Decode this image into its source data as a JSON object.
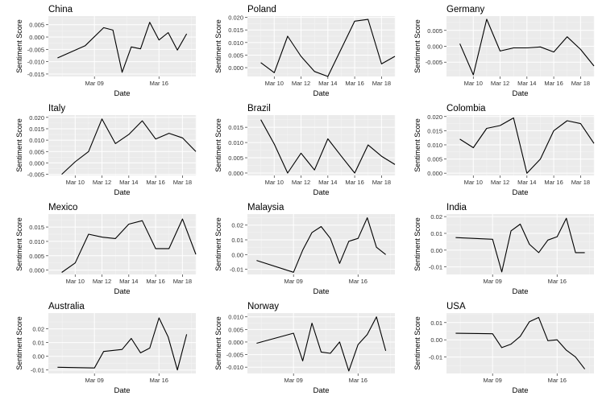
{
  "chart_data": [
    {
      "type": "line",
      "title": "China",
      "xlabel": "Date",
      "ylabel": "Sentiment Score",
      "x_axis": {
        "type": "date",
        "range": [
          "2020-03-04",
          "2020-03-20"
        ],
        "ticks": [
          {
            "date": "2020-03-09",
            "label": "Mar 09"
          },
          {
            "date": "2020-03-16",
            "label": "Mar 16"
          }
        ]
      },
      "y_axis": {
        "range": [
          -0.016,
          0.0085
        ],
        "ticks": [
          0.005,
          0.0,
          -0.005,
          -0.01,
          -0.015
        ],
        "tick_labels": [
          "0.005",
          "0.000",
          "-0.005",
          "-0.010",
          "-0.015"
        ]
      },
      "grid": true,
      "series": [
        {
          "x": [
            "2020-03-05",
            "2020-03-08",
            "2020-03-10",
            "2020-03-11",
            "2020-03-12",
            "2020-03-13",
            "2020-03-14",
            "2020-03-15",
            "2020-03-16",
            "2020-03-17",
            "2020-03-18",
            "2020-03-19"
          ],
          "y": [
            -0.0085,
            -0.0035,
            0.0038,
            0.0028,
            -0.0143,
            -0.004,
            -0.0048,
            0.006,
            -0.0012,
            0.0018,
            -0.0053,
            0.0013
          ]
        }
      ]
    },
    {
      "type": "line",
      "title": "Poland",
      "xlabel": "Date",
      "ylabel": "Sentiment Score",
      "x_axis": {
        "type": "date",
        "range": [
          "2020-03-08",
          "2020-03-19"
        ],
        "ticks": [
          {
            "date": "2020-03-10",
            "label": "Mar 10"
          },
          {
            "date": "2020-03-12",
            "label": "Mar 12"
          },
          {
            "date": "2020-03-14",
            "label": "Mar 14"
          },
          {
            "date": "2020-03-16",
            "label": "Mar 16"
          },
          {
            "date": "2020-03-18",
            "label": "Mar 18"
          }
        ]
      },
      "y_axis": {
        "range": [
          -0.0035,
          0.0205
        ],
        "ticks": [
          0.02,
          0.015,
          0.01,
          0.005,
          0.0
        ],
        "tick_labels": [
          "0.020",
          "0.015",
          "0.010",
          "0.005",
          "0.000"
        ]
      },
      "grid": true,
      "series": [
        {
          "x": [
            "2020-03-09",
            "2020-03-10",
            "2020-03-11",
            "2020-03-12",
            "2020-03-13",
            "2020-03-14",
            "2020-03-16",
            "2020-03-17",
            "2020-03-18",
            "2020-03-19"
          ],
          "y": [
            0.002,
            -0.002,
            0.0125,
            0.0045,
            -0.0015,
            -0.0035,
            0.0185,
            0.0192,
            0.0015,
            0.0045
          ]
        }
      ]
    },
    {
      "type": "line",
      "title": "Germany",
      "xlabel": "Date",
      "ylabel": "Sentiment Score",
      "x_axis": {
        "type": "date",
        "range": [
          "2020-03-08",
          "2020-03-19"
        ],
        "ticks": [
          {
            "date": "2020-03-10",
            "label": "Mar 10"
          },
          {
            "date": "2020-03-12",
            "label": "Mar 12"
          },
          {
            "date": "2020-03-14",
            "label": "Mar 14"
          },
          {
            "date": "2020-03-16",
            "label": "Mar 16"
          },
          {
            "date": "2020-03-18",
            "label": "Mar 18"
          }
        ]
      },
      "y_axis": {
        "range": [
          -0.0095,
          0.0095
        ],
        "ticks": [
          0.005,
          0.0,
          -0.005
        ],
        "tick_labels": [
          "0.005",
          "0.000",
          "-0.005"
        ]
      },
      "grid": true,
      "series": [
        {
          "x": [
            "2020-03-09",
            "2020-03-10",
            "2020-03-11",
            "2020-03-12",
            "2020-03-13",
            "2020-03-14",
            "2020-03-15",
            "2020-03-16",
            "2020-03-17",
            "2020-03-18",
            "2020-03-19"
          ],
          "y": [
            0.0008,
            -0.009,
            0.0085,
            -0.0015,
            -0.0005,
            -0.0005,
            -0.0002,
            -0.0018,
            0.003,
            -0.001,
            -0.0062
          ]
        }
      ]
    },
    {
      "type": "line",
      "title": "Italy",
      "xlabel": "Date",
      "ylabel": "Sentiment Score",
      "x_axis": {
        "type": "date",
        "range": [
          "2020-03-08",
          "2020-03-19"
        ],
        "ticks": [
          {
            "date": "2020-03-10",
            "label": "Mar 10"
          },
          {
            "date": "2020-03-12",
            "label": "Mar 12"
          },
          {
            "date": "2020-03-14",
            "label": "Mar 14"
          },
          {
            "date": "2020-03-16",
            "label": "Mar 16"
          },
          {
            "date": "2020-03-18",
            "label": "Mar 18"
          }
        ]
      },
      "y_axis": {
        "range": [
          -0.0055,
          0.021
        ],
        "ticks": [
          0.02,
          0.015,
          0.01,
          0.005,
          0.0,
          -0.005
        ],
        "tick_labels": [
          "0.020",
          "0.015",
          "0.010",
          "0.005",
          "0.000",
          "-0.005"
        ]
      },
      "grid": true,
      "series": [
        {
          "x": [
            "2020-03-09",
            "2020-03-10",
            "2020-03-11",
            "2020-03-12",
            "2020-03-13",
            "2020-03-14",
            "2020-03-15",
            "2020-03-16",
            "2020-03-17",
            "2020-03-18",
            "2020-03-19"
          ],
          "y": [
            -0.005,
            0.0005,
            0.005,
            0.0193,
            0.0085,
            0.0125,
            0.0185,
            0.0105,
            0.013,
            0.011,
            0.005
          ]
        }
      ]
    },
    {
      "type": "line",
      "title": "Brazil",
      "xlabel": "Date",
      "ylabel": "Sentiment Score",
      "x_axis": {
        "type": "date",
        "range": [
          "2020-03-08",
          "2020-03-19"
        ],
        "ticks": [
          {
            "date": "2020-03-10",
            "label": "Mar 10"
          },
          {
            "date": "2020-03-12",
            "label": "Mar 12"
          },
          {
            "date": "2020-03-14",
            "label": "Mar 14"
          },
          {
            "date": "2020-03-16",
            "label": "Mar 16"
          },
          {
            "date": "2020-03-18",
            "label": "Mar 18"
          }
        ]
      },
      "y_axis": {
        "range": [
          -0.0008,
          0.019
        ],
        "ticks": [
          0.015,
          0.01,
          0.005,
          0.0
        ],
        "tick_labels": [
          "0.015",
          "0.010",
          "0.005",
          "0.000"
        ]
      },
      "grid": true,
      "series": [
        {
          "x": [
            "2020-03-09",
            "2020-03-10",
            "2020-03-11",
            "2020-03-12",
            "2020-03-13",
            "2020-03-14",
            "2020-03-15",
            "2020-03-16",
            "2020-03-17",
            "2020-03-18",
            "2020-03-19"
          ],
          "y": [
            0.0175,
            0.0095,
            0.0,
            0.0065,
            0.001,
            0.0112,
            0.0055,
            0.0,
            0.0092,
            0.0055,
            0.0028
          ]
        }
      ]
    },
    {
      "type": "line",
      "title": "Colombia",
      "xlabel": "Date",
      "ylabel": "Sentiment Score",
      "x_axis": {
        "type": "date",
        "range": [
          "2020-03-08",
          "2020-03-19"
        ],
        "ticks": [
          {
            "date": "2020-03-10",
            "label": "Mar 10"
          },
          {
            "date": "2020-03-12",
            "label": "Mar 12"
          },
          {
            "date": "2020-03-14",
            "label": "Mar 14"
          },
          {
            "date": "2020-03-16",
            "label": "Mar 16"
          },
          {
            "date": "2020-03-18",
            "label": "Mar 18"
          }
        ]
      },
      "y_axis": {
        "range": [
          -0.0008,
          0.0205
        ],
        "ticks": [
          0.02,
          0.015,
          0.01,
          0.005,
          0.0
        ],
        "tick_labels": [
          "0.020",
          "0.015",
          "0.010",
          "0.005",
          "0.000"
        ]
      },
      "grid": true,
      "series": [
        {
          "x": [
            "2020-03-09",
            "2020-03-10",
            "2020-03-11",
            "2020-03-12",
            "2020-03-13",
            "2020-03-14",
            "2020-03-15",
            "2020-03-16",
            "2020-03-17",
            "2020-03-18",
            "2020-03-19"
          ],
          "y": [
            0.012,
            0.009,
            0.0158,
            0.0168,
            0.0195,
            0.0,
            0.005,
            0.015,
            0.0185,
            0.0175,
            0.0105
          ]
        }
      ]
    },
    {
      "type": "line",
      "title": "Mexico",
      "xlabel": "Date",
      "ylabel": "Sentiment Score",
      "x_axis": {
        "type": "date",
        "range": [
          "2020-03-08",
          "2020-03-19"
        ],
        "ticks": [
          {
            "date": "2020-03-10",
            "label": "Mar 10"
          },
          {
            "date": "2020-03-12",
            "label": "Mar 12"
          },
          {
            "date": "2020-03-14",
            "label": "Mar 14"
          },
          {
            "date": "2020-03-16",
            "label": "Mar 16"
          },
          {
            "date": "2020-03-18",
            "label": "Mar 18"
          }
        ]
      },
      "y_axis": {
        "range": [
          -0.0015,
          0.0195
        ],
        "ticks": [
          0.015,
          0.01,
          0.005,
          0.0
        ],
        "tick_labels": [
          "0.015",
          "0.010",
          "0.005",
          "0.000"
        ]
      },
      "grid": true,
      "series": [
        {
          "x": [
            "2020-03-09",
            "2020-03-10",
            "2020-03-11",
            "2020-03-12",
            "2020-03-13",
            "2020-03-14",
            "2020-03-15",
            "2020-03-16",
            "2020-03-17",
            "2020-03-18",
            "2020-03-19"
          ],
          "y": [
            -0.0008,
            0.0025,
            0.0125,
            0.0115,
            0.011,
            0.016,
            0.0172,
            0.0075,
            0.0075,
            0.0178,
            0.0055
          ]
        }
      ]
    },
    {
      "type": "line",
      "title": "Malaysia",
      "xlabel": "Date",
      "ylabel": "Sentiment Score",
      "x_axis": {
        "type": "date",
        "range": [
          "2020-03-04",
          "2020-03-20"
        ],
        "ticks": [
          {
            "date": "2020-03-09",
            "label": "Mar 09"
          },
          {
            "date": "2020-03-16",
            "label": "Mar 16"
          }
        ]
      },
      "y_axis": {
        "range": [
          -0.0135,
          0.0275
        ],
        "ticks": [
          0.02,
          0.01,
          0.0,
          -0.01
        ],
        "tick_labels": [
          "0.02",
          "0.01",
          "0.00",
          "-0.01"
        ]
      },
      "grid": true,
      "series": [
        {
          "x": [
            "2020-03-05",
            "2020-03-09",
            "2020-03-10",
            "2020-03-11",
            "2020-03-12",
            "2020-03-13",
            "2020-03-14",
            "2020-03-15",
            "2020-03-16",
            "2020-03-17",
            "2020-03-18",
            "2020-03-19"
          ],
          "y": [
            -0.004,
            -0.012,
            0.003,
            0.015,
            0.019,
            0.011,
            -0.006,
            0.009,
            0.011,
            0.025,
            0.005,
            0.0
          ]
        }
      ]
    },
    {
      "type": "line",
      "title": "India",
      "xlabel": "Date",
      "ylabel": "Sentiment Score",
      "x_axis": {
        "type": "date",
        "range": [
          "2020-03-04",
          "2020-03-20"
        ],
        "ticks": [
          {
            "date": "2020-03-09",
            "label": "Mar 09"
          },
          {
            "date": "2020-03-16",
            "label": "Mar 16"
          }
        ]
      },
      "y_axis": {
        "range": [
          -0.0145,
          0.0215
        ],
        "ticks": [
          0.02,
          0.01,
          0.0,
          -0.01
        ],
        "tick_labels": [
          "0.02",
          "0.01",
          "0.00",
          "-0.01"
        ]
      },
      "grid": true,
      "series": [
        {
          "x": [
            "2020-03-05",
            "2020-03-09",
            "2020-03-10",
            "2020-03-11",
            "2020-03-12",
            "2020-03-13",
            "2020-03-14",
            "2020-03-15",
            "2020-03-16",
            "2020-03-17",
            "2020-03-18",
            "2020-03-19"
          ],
          "y": [
            0.0075,
            0.0065,
            -0.013,
            0.0115,
            0.0155,
            0.0035,
            -0.0015,
            0.006,
            0.008,
            0.019,
            -0.0015,
            -0.0015
          ]
        }
      ]
    },
    {
      "type": "line",
      "title": "Australia",
      "xlabel": "Date",
      "ylabel": "Sentiment Score",
      "x_axis": {
        "type": "date",
        "range": [
          "2020-03-04",
          "2020-03-20"
        ],
        "ticks": [
          {
            "date": "2020-03-09",
            "label": "Mar 09"
          },
          {
            "date": "2020-03-16",
            "label": "Mar 16"
          }
        ]
      },
      "y_axis": {
        "range": [
          -0.0125,
          0.0315
        ],
        "ticks": [
          0.02,
          0.01,
          0.0,
          -0.01
        ],
        "tick_labels": [
          "0.02",
          "0.01",
          "0.00",
          "-0.01"
        ]
      },
      "grid": true,
      "series": [
        {
          "x": [
            "2020-03-05",
            "2020-03-09",
            "2020-03-10",
            "2020-03-12",
            "2020-03-13",
            "2020-03-14",
            "2020-03-15",
            "2020-03-16",
            "2020-03-17",
            "2020-03-18",
            "2020-03-19"
          ],
          "y": [
            -0.008,
            -0.0085,
            0.0035,
            0.005,
            0.013,
            0.0025,
            0.006,
            0.028,
            0.014,
            -0.01,
            0.016
          ]
        }
      ]
    },
    {
      "type": "line",
      "title": "Norway",
      "xlabel": "Date",
      "ylabel": "Sentiment Score",
      "x_axis": {
        "type": "date",
        "range": [
          "2020-03-04",
          "2020-03-20"
        ],
        "ticks": [
          {
            "date": "2020-03-09",
            "label": "Mar 09"
          },
          {
            "date": "2020-03-16",
            "label": "Mar 16"
          }
        ]
      },
      "y_axis": {
        "range": [
          -0.0125,
          0.0115
        ],
        "ticks": [
          0.01,
          0.005,
          0.0,
          -0.005,
          -0.01
        ],
        "tick_labels": [
          "0.010",
          "0.005",
          "0.000",
          "-0.005",
          "-0.010"
        ]
      },
      "grid": true,
      "series": [
        {
          "x": [
            "2020-03-05",
            "2020-03-09",
            "2020-03-10",
            "2020-03-11",
            "2020-03-12",
            "2020-03-13",
            "2020-03-14",
            "2020-03-15",
            "2020-03-16",
            "2020-03-17",
            "2020-03-18",
            "2020-03-19"
          ],
          "y": [
            -0.0005,
            0.0035,
            -0.0075,
            0.0075,
            -0.004,
            -0.0045,
            0.0,
            -0.0115,
            -0.001,
            0.003,
            0.01,
            -0.0035
          ]
        }
      ]
    },
    {
      "type": "line",
      "title": "USA",
      "xlabel": "Date",
      "ylabel": "Sentiment Score",
      "x_axis": {
        "type": "date",
        "range": [
          "2020-03-04",
          "2020-03-20"
        ],
        "ticks": [
          {
            "date": "2020-03-09",
            "label": "Mar 09"
          },
          {
            "date": "2020-03-16",
            "label": "Mar 16"
          }
        ]
      },
      "y_axis": {
        "range": [
          -0.0195,
          0.0155
        ],
        "ticks": [
          0.01,
          0.0,
          -0.01
        ],
        "tick_labels": [
          "0.01",
          "0.00",
          "-0.01"
        ]
      },
      "grid": true,
      "series": [
        {
          "x": [
            "2020-03-05",
            "2020-03-09",
            "2020-03-10",
            "2020-03-11",
            "2020-03-12",
            "2020-03-13",
            "2020-03-14",
            "2020-03-15",
            "2020-03-16",
            "2020-03-17",
            "2020-03-18",
            "2020-03-19"
          ],
          "y": [
            0.0038,
            0.0035,
            -0.0045,
            -0.0025,
            0.002,
            0.0105,
            0.013,
            -0.0005,
            0.0,
            -0.006,
            -0.01,
            -0.017
          ]
        }
      ]
    }
  ]
}
